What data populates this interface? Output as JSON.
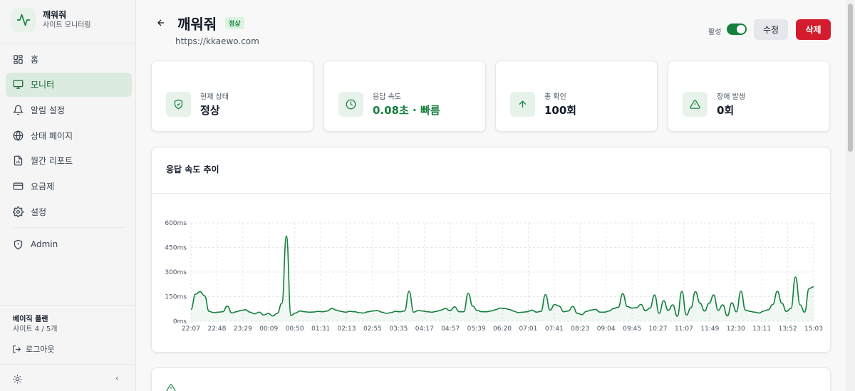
{
  "brand": {
    "title": "깨워줘",
    "subtitle": "사이트 모니터링",
    "icon": "activity-icon"
  },
  "nav": {
    "items": [
      {
        "label": "홈",
        "icon": "grid-icon",
        "active": false
      },
      {
        "label": "모니터",
        "icon": "monitor-icon",
        "active": true
      },
      {
        "label": "알림 설정",
        "icon": "bell-icon",
        "active": false
      },
      {
        "label": "상태 페이지",
        "icon": "globe-icon",
        "active": false
      },
      {
        "label": "월간 리포트",
        "icon": "report-icon",
        "active": false
      },
      {
        "label": "요금제",
        "icon": "credit-card-icon",
        "active": false
      },
      {
        "label": "설정",
        "icon": "gear-icon",
        "active": false
      }
    ],
    "admin": {
      "label": "Admin",
      "icon": "shield-icon"
    }
  },
  "plan": {
    "name": "베이직 플랜",
    "usage": "사이트 4 / 5개"
  },
  "logout": {
    "label": "로그아웃"
  },
  "header": {
    "title": "깨워줘",
    "status": "정상",
    "url": "https://kkaewo.com",
    "active_label": "활성",
    "active": true,
    "edit_label": "수정",
    "delete_label": "삭제"
  },
  "stats": [
    {
      "label": "현재 상태",
      "value": "정상",
      "icon": "shield-check-icon",
      "highlight": false
    },
    {
      "label": "응답 속도",
      "value": "0.08초 · 빠름",
      "icon": "clock-icon",
      "highlight": true
    },
    {
      "label": "총 확인",
      "value": "100회",
      "icon": "arrow-up-icon",
      "highlight": false
    },
    {
      "label": "장애 발생",
      "value": "0회",
      "icon": "warning-icon",
      "highlight": false
    }
  ],
  "chart_card": {
    "title": "응답 속도 추이"
  },
  "colors": {
    "accent": "#15803d",
    "danger": "#d31c2e",
    "accent_soft": "#e6f2ea"
  },
  "chart_data": {
    "type": "area",
    "title": "응답 속도 추이",
    "xlabel": "",
    "ylabel": "",
    "ylim": [
      0,
      600
    ],
    "yticks": [
      "600ms",
      "450ms",
      "300ms",
      "150ms",
      "0ms"
    ],
    "ytick_values": [
      600,
      450,
      300,
      150,
      0
    ],
    "xticks": [
      "22:07",
      "22:48",
      "23:29",
      "00:09",
      "00:50",
      "01:31",
      "02:13",
      "02:55",
      "03:35",
      "04:17",
      "04:57",
      "05:39",
      "06:20",
      "07:01",
      "07:41",
      "08:23",
      "09:04",
      "09:45",
      "10:27",
      "11:07",
      "11:49",
      "12:30",
      "13:11",
      "13:52",
      "15:03"
    ],
    "grid": true,
    "series": [
      {
        "color": "#15803d",
        "values": [
          72,
          165,
          180,
          155,
          60,
          52,
          55,
          58,
          92,
          50,
          58,
          66,
          70,
          55,
          45,
          55,
          38,
          48,
          32,
          48,
          110,
          520,
          35,
          50,
          62,
          58,
          55,
          56,
          60,
          58,
          62,
          78,
          68,
          60,
          55,
          60,
          58,
          52,
          50,
          58,
          62,
          65,
          55,
          48,
          52,
          60,
          58,
          62,
          182,
          55,
          65,
          62,
          58,
          55,
          60,
          68,
          78,
          64,
          88,
          58,
          58,
          170,
          92,
          65,
          58,
          58,
          62,
          70,
          80,
          78,
          72,
          62,
          52,
          55,
          58,
          68,
          55,
          60,
          162,
          68,
          102,
          92,
          58,
          62,
          90,
          48,
          40,
          60,
          68,
          72,
          55,
          55,
          62,
          78,
          85,
          168,
          90,
          80,
          82,
          102,
          64,
          80,
          160,
          48,
          125,
          66,
          100,
          30,
          182,
          38,
          82,
          180,
          110,
          62,
          110,
          160,
          66,
          100,
          32,
          112,
          58,
          182,
          68,
          60,
          55,
          50,
          62,
          70,
          102,
          182,
          110,
          60,
          78,
          270,
          100,
          55,
          200,
          210
        ]
      }
    ]
  }
}
